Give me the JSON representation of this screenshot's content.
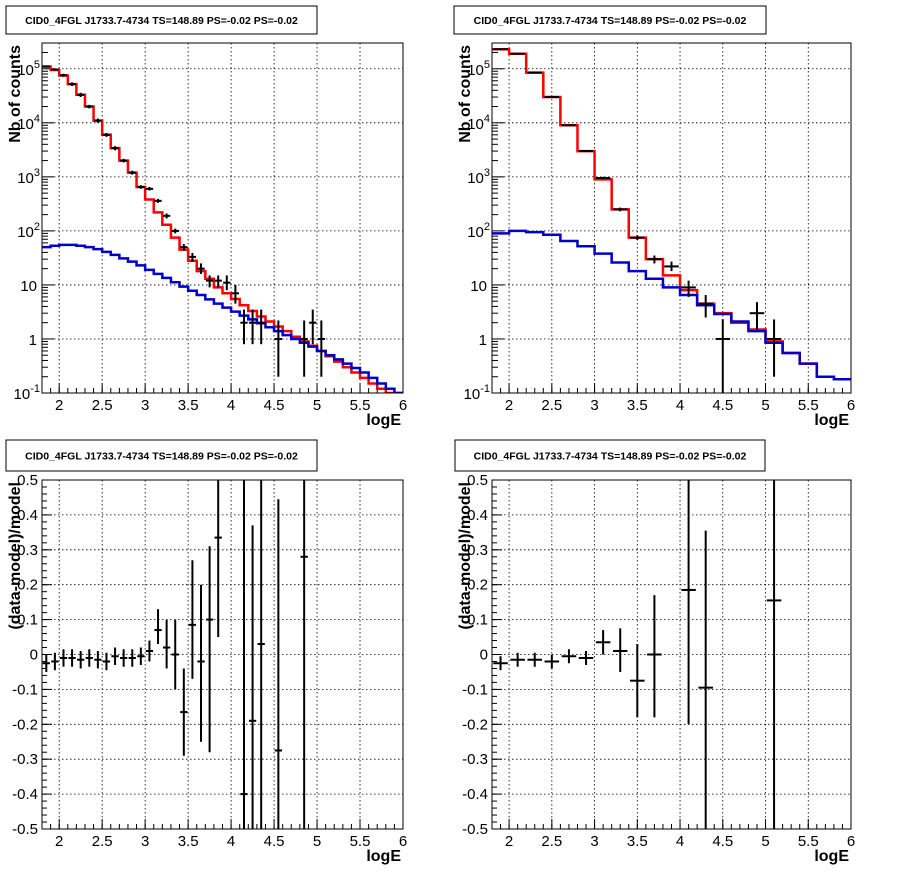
{
  "chart_data": [
    {
      "type": "line",
      "title": "CID0_4FGL J1733.7-4734 TS=148.89 PS=-0.02 PS=-0.02",
      "xlabel": "logE",
      "ylabel": "Nb of counts",
      "xlim": [
        1.8,
        6.0
      ],
      "ylim": [
        0.1,
        300000
      ],
      "yscale": "log",
      "grid": true,
      "x_ticks": [
        "2",
        "2.5",
        "3",
        "3.5",
        "4",
        "4.5",
        "5",
        "5.5",
        "6"
      ],
      "series": [
        {
          "color": "#ff0000",
          "kind": "step",
          "x_edges": [
            1.8,
            1.9,
            2.0,
            2.1,
            2.2,
            2.3,
            2.4,
            2.5,
            2.6,
            2.7,
            2.8,
            2.9,
            3.0,
            3.1,
            3.2,
            3.3,
            3.4,
            3.5,
            3.6,
            3.7,
            3.8,
            3.9,
            4.0,
            4.1,
            4.2,
            4.3,
            4.4,
            4.5,
            4.6,
            4.7,
            4.8,
            4.9,
            5.0,
            5.1,
            5.2,
            5.3,
            5.4,
            5.5,
            5.6,
            5.7,
            5.8,
            5.9,
            6.0
          ],
          "values": [
            110000,
            95000,
            75000,
            52000,
            33000,
            20000,
            11000,
            6000,
            3400,
            2000,
            1200,
            650,
            380,
            220,
            130,
            75,
            45,
            28,
            18,
            13,
            9,
            7,
            5.5,
            4.2,
            3.3,
            2.6,
            2.1,
            1.7,
            1.4,
            1.1,
            0.9,
            0.75,
            0.6,
            0.48,
            0.38,
            0.3,
            0.24,
            0.19,
            0.15,
            0.12,
            0.1,
            0.09
          ]
        },
        {
          "color": "#0000cc",
          "kind": "step",
          "x_edges": [
            1.8,
            1.9,
            2.0,
            2.1,
            2.2,
            2.3,
            2.4,
            2.5,
            2.6,
            2.7,
            2.8,
            2.9,
            3.0,
            3.1,
            3.2,
            3.3,
            3.4,
            3.5,
            3.6,
            3.7,
            3.8,
            3.9,
            4.0,
            4.1,
            4.2,
            4.3,
            4.4,
            4.5,
            4.6,
            4.7,
            4.8,
            4.9,
            5.0,
            5.1,
            5.2,
            5.3,
            5.4,
            5.5,
            5.6,
            5.7,
            5.8,
            5.9,
            6.0
          ],
          "values": [
            50,
            53,
            55,
            55,
            53,
            50,
            46,
            41,
            36,
            31,
            27,
            23,
            19,
            16,
            13.5,
            11.2,
            9.3,
            7.8,
            6.5,
            5.4,
            4.5,
            3.8,
            3.2,
            2.7,
            2.3,
            1.95,
            1.65,
            1.4,
            1.18,
            1.0,
            0.85,
            0.72,
            0.6,
            0.5,
            0.42,
            0.35,
            0.29,
            0.24,
            0.19,
            0.15,
            0.12,
            0.1
          ]
        }
      ],
      "points": [
        {
          "x": 1.85,
          "y": 110000,
          "lo": 105000,
          "hi": 115000
        },
        {
          "x": 1.95,
          "y": 97000,
          "lo": 92000,
          "hi": 102000
        },
        {
          "x": 2.05,
          "y": 76000,
          "lo": 71000,
          "hi": 81000
        },
        {
          "x": 2.15,
          "y": 52000,
          "lo": 48000,
          "hi": 56000
        },
        {
          "x": 2.25,
          "y": 33000,
          "lo": 30000,
          "hi": 36000
        },
        {
          "x": 2.35,
          "y": 20000,
          "lo": 18500,
          "hi": 21500
        },
        {
          "x": 2.45,
          "y": 11000,
          "lo": 10000,
          "hi": 12000
        },
        {
          "x": 2.55,
          "y": 6000,
          "lo": 5500,
          "hi": 6500
        },
        {
          "x": 2.65,
          "y": 3400,
          "lo": 3100,
          "hi": 3700
        },
        {
          "x": 2.75,
          "y": 2000,
          "lo": 1850,
          "hi": 2150
        },
        {
          "x": 2.85,
          "y": 1200,
          "lo": 1100,
          "hi": 1300
        },
        {
          "x": 2.95,
          "y": 650,
          "lo": 600,
          "hi": 700
        },
        {
          "x": 3.05,
          "y": 600,
          "lo": 560,
          "hi": 650
        },
        {
          "x": 3.15,
          "y": 360,
          "lo": 330,
          "hi": 390
        },
        {
          "x": 3.25,
          "y": 190,
          "lo": 170,
          "hi": 210
        },
        {
          "x": 3.35,
          "y": 100,
          "lo": 90,
          "hi": 110
        },
        {
          "x": 3.45,
          "y": 50,
          "lo": 43,
          "hi": 57
        },
        {
          "x": 3.55,
          "y": 33,
          "lo": 27,
          "hi": 39
        },
        {
          "x": 3.65,
          "y": 20,
          "lo": 16,
          "hi": 25
        },
        {
          "x": 3.75,
          "y": 12,
          "lo": 9,
          "hi": 15
        },
        {
          "x": 3.85,
          "y": 12,
          "lo": 9,
          "hi": 15
        },
        {
          "x": 3.95,
          "y": 11,
          "lo": 8,
          "hi": 15
        },
        {
          "x": 4.05,
          "y": 7,
          "lo": 4.5,
          "hi": 10
        },
        {
          "x": 4.15,
          "y": 2,
          "lo": 0.8,
          "hi": 3.5
        },
        {
          "x": 4.25,
          "y": 2,
          "lo": 0.8,
          "hi": 3.5
        },
        {
          "x": 4.35,
          "y": 2,
          "lo": 0.8,
          "hi": 3.5
        },
        {
          "x": 4.55,
          "y": 1,
          "lo": 0.2,
          "hi": 2.2
        },
        {
          "x": 4.85,
          "y": 1,
          "lo": 0.2,
          "hi": 2.2
        },
        {
          "x": 4.95,
          "y": 2,
          "lo": 0.8,
          "hi": 3.5
        },
        {
          "x": 5.05,
          "y": 1,
          "lo": 0.2,
          "hi": 2.2
        }
      ]
    },
    {
      "type": "line",
      "title": "CID0_4FGL J1733.7-4734 TS=148.89 PS=-0.02 PS=-0.02",
      "xlabel": "logE",
      "ylabel": "Nb of counts",
      "xlim": [
        1.8,
        6.0
      ],
      "ylim": [
        0.1,
        300000
      ],
      "yscale": "log",
      "grid": true,
      "x_ticks": [
        "2",
        "2.5",
        "3",
        "3.5",
        "4",
        "4.5",
        "5",
        "5.5",
        "6"
      ],
      "series": [
        {
          "color": "#ff0000",
          "kind": "step",
          "x_edges": [
            1.8,
            2.0,
            2.2,
            2.4,
            2.6,
            2.8,
            3.0,
            3.2,
            3.4,
            3.6,
            3.8,
            4.0,
            4.2,
            4.4,
            4.6,
            4.8,
            5.0,
            5.2,
            5.4,
            5.6,
            5.8,
            6.0
          ],
          "values": [
            230000,
            190000,
            85000,
            30000,
            9000,
            3000,
            900,
            250,
            75,
            30,
            15,
            8,
            4.5,
            3,
            2,
            1.5,
            0.9,
            0.55,
            0.35,
            0.2,
            0.18
          ]
        },
        {
          "color": "#0000cc",
          "kind": "step",
          "x_edges": [
            1.8,
            2.0,
            2.2,
            2.4,
            2.6,
            2.8,
            3.0,
            3.2,
            3.4,
            3.6,
            3.8,
            4.0,
            4.2,
            4.4,
            4.6,
            4.8,
            5.0,
            5.2,
            5.4,
            5.6,
            5.8,
            6.0
          ],
          "values": [
            90,
            100,
            95,
            85,
            65,
            52,
            38,
            26,
            18,
            13,
            9,
            6.5,
            4.2,
            2.9,
            2.1,
            1.4,
            0.85,
            0.55,
            0.35,
            0.2,
            0.18
          ]
        }
      ],
      "points": [
        {
          "x": 1.9,
          "y": 230000,
          "lo": 225000,
          "hi": 235000
        },
        {
          "x": 2.1,
          "y": 190000,
          "lo": 185000,
          "hi": 195000
        },
        {
          "x": 2.3,
          "y": 85000,
          "lo": 82000,
          "hi": 88000
        },
        {
          "x": 2.5,
          "y": 30000,
          "lo": 29000,
          "hi": 31000
        },
        {
          "x": 2.7,
          "y": 9000,
          "lo": 8700,
          "hi": 9300
        },
        {
          "x": 2.9,
          "y": 3000,
          "lo": 2900,
          "hi": 3100
        },
        {
          "x": 3.1,
          "y": 950,
          "lo": 900,
          "hi": 1000
        },
        {
          "x": 3.3,
          "y": 250,
          "lo": 230,
          "hi": 270
        },
        {
          "x": 3.5,
          "y": 75,
          "lo": 68,
          "hi": 83
        },
        {
          "x": 3.7,
          "y": 30,
          "lo": 25,
          "hi": 35
        },
        {
          "x": 3.9,
          "y": 22,
          "lo": 18,
          "hi": 27
        },
        {
          "x": 4.1,
          "y": 9,
          "lo": 6,
          "hi": 12
        },
        {
          "x": 4.3,
          "y": 4.5,
          "lo": 2.5,
          "hi": 6.5
        },
        {
          "x": 4.5,
          "y": 1,
          "lo": 0.1,
          "hi": 2.3
        },
        {
          "x": 4.9,
          "y": 3,
          "lo": 1.5,
          "hi": 4.8
        },
        {
          "x": 5.1,
          "y": 1,
          "lo": 0.2,
          "hi": 2.3
        }
      ]
    },
    {
      "type": "scatter",
      "title": "CID0_4FGL J1733.7-4734 TS=148.89 PS=-0.02 PS=-0.02",
      "xlabel": "logE",
      "ylabel": "(data-model)/model",
      "xlim": [
        1.8,
        6.0
      ],
      "ylim": [
        -0.5,
        0.5
      ],
      "grid": true,
      "x_ticks": [
        "2",
        "2.5",
        "3",
        "3.5",
        "4",
        "4.5",
        "5",
        "5.5",
        "6"
      ],
      "y_ticks": [
        "-0.5",
        "-0.4",
        "-0.3",
        "-0.2",
        "-0.1",
        "0",
        "0.1",
        "0.2",
        "0.3",
        "0.4",
        "0.5"
      ],
      "points": [
        {
          "x": 1.85,
          "y": -0.025,
          "lo": -0.05,
          "hi": 0.0
        },
        {
          "x": 1.95,
          "y": -0.02,
          "lo": -0.045,
          "hi": 0.005
        },
        {
          "x": 2.05,
          "y": -0.01,
          "lo": -0.035,
          "hi": 0.015
        },
        {
          "x": 2.15,
          "y": -0.01,
          "lo": -0.035,
          "hi": 0.015
        },
        {
          "x": 2.25,
          "y": -0.015,
          "lo": -0.04,
          "hi": 0.01
        },
        {
          "x": 2.35,
          "y": -0.01,
          "lo": -0.035,
          "hi": 0.015
        },
        {
          "x": 2.45,
          "y": -0.015,
          "lo": -0.04,
          "hi": 0.01
        },
        {
          "x": 2.55,
          "y": -0.02,
          "lo": -0.045,
          "hi": 0.005
        },
        {
          "x": 2.65,
          "y": -0.005,
          "lo": -0.03,
          "hi": 0.02
        },
        {
          "x": 2.75,
          "y": -0.01,
          "lo": -0.035,
          "hi": 0.015
        },
        {
          "x": 2.85,
          "y": -0.01,
          "lo": -0.035,
          "hi": 0.015
        },
        {
          "x": 2.95,
          "y": -0.005,
          "lo": -0.03,
          "hi": 0.02
        },
        {
          "x": 3.05,
          "y": 0.01,
          "lo": -0.02,
          "hi": 0.04
        },
        {
          "x": 3.15,
          "y": 0.07,
          "lo": 0.03,
          "hi": 0.13
        },
        {
          "x": 3.25,
          "y": 0.02,
          "lo": -0.04,
          "hi": 0.1
        },
        {
          "x": 3.35,
          "y": 0.0,
          "lo": -0.1,
          "hi": 0.1
        },
        {
          "x": 3.45,
          "y": -0.165,
          "lo": -0.29,
          "hi": -0.04
        },
        {
          "x": 3.55,
          "y": 0.085,
          "lo": -0.07,
          "hi": 0.27
        },
        {
          "x": 3.65,
          "y": -0.02,
          "lo": -0.25,
          "hi": 0.2
        },
        {
          "x": 3.75,
          "y": 0.1,
          "lo": -0.28,
          "hi": 0.31
        },
        {
          "x": 3.85,
          "y": 0.335,
          "lo": 0.05,
          "hi": 0.5
        },
        {
          "x": 4.15,
          "y": -0.4,
          "lo": -0.5,
          "hi": 0.5
        },
        {
          "x": 4.25,
          "y": -0.19,
          "lo": -0.5,
          "hi": 0.37
        },
        {
          "x": 4.35,
          "y": 0.03,
          "lo": -0.5,
          "hi": 0.5
        },
        {
          "x": 4.55,
          "y": -0.275,
          "lo": -0.5,
          "hi": 0.445
        },
        {
          "x": 4.85,
          "y": 0.28,
          "lo": -0.5,
          "hi": 0.5
        }
      ]
    },
    {
      "type": "scatter",
      "title": "CID0_4FGL J1733.7-4734 TS=148.89 PS=-0.02 PS=-0.02",
      "xlabel": "logE",
      "ylabel": "(data-model)/model",
      "xlim": [
        1.8,
        6.0
      ],
      "ylim": [
        -0.5,
        0.5
      ],
      "grid": true,
      "x_ticks": [
        "2",
        "2.5",
        "3",
        "3.5",
        "4",
        "4.5",
        "5",
        "5.5",
        "6"
      ],
      "y_ticks": [
        "-0.5",
        "-0.4",
        "-0.3",
        "-0.2",
        "-0.1",
        "0",
        "0.1",
        "0.2",
        "0.3",
        "0.4",
        "0.5"
      ],
      "points": [
        {
          "x": 1.9,
          "y": -0.025,
          "lo": -0.045,
          "hi": -0.005
        },
        {
          "x": 2.1,
          "y": -0.015,
          "lo": -0.035,
          "hi": 0.005
        },
        {
          "x": 2.3,
          "y": -0.015,
          "lo": -0.035,
          "hi": 0.005
        },
        {
          "x": 2.5,
          "y": -0.02,
          "lo": -0.04,
          "hi": 0.0
        },
        {
          "x": 2.7,
          "y": -0.005,
          "lo": -0.025,
          "hi": 0.015
        },
        {
          "x": 2.9,
          "y": -0.01,
          "lo": -0.03,
          "hi": 0.01
        },
        {
          "x": 3.1,
          "y": 0.035,
          "lo": 0.0,
          "hi": 0.07
        },
        {
          "x": 3.3,
          "y": 0.01,
          "lo": -0.05,
          "hi": 0.075
        },
        {
          "x": 3.5,
          "y": -0.075,
          "lo": -0.18,
          "hi": 0.03
        },
        {
          "x": 3.7,
          "y": 0.0,
          "lo": -0.18,
          "hi": 0.17
        },
        {
          "x": 4.1,
          "y": 0.185,
          "lo": -0.2,
          "hi": 0.5
        },
        {
          "x": 4.3,
          "y": -0.095,
          "lo": -0.5,
          "hi": 0.355
        },
        {
          "x": 5.1,
          "y": 0.155,
          "lo": -0.5,
          "hi": 0.5
        }
      ]
    }
  ]
}
